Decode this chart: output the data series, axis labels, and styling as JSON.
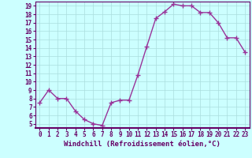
{
  "x": [
    0,
    1,
    2,
    3,
    4,
    5,
    6,
    7,
    8,
    9,
    10,
    11,
    12,
    13,
    14,
    15,
    16,
    17,
    18,
    19,
    20,
    21,
    22,
    23
  ],
  "y": [
    7.5,
    9.0,
    8.0,
    8.0,
    6.5,
    5.5,
    5.0,
    4.8,
    7.5,
    7.8,
    7.8,
    10.8,
    14.2,
    17.5,
    18.3,
    19.2,
    19.0,
    19.0,
    18.2,
    18.2,
    17.0,
    15.2,
    15.2,
    13.5
  ],
  "line_color": "#993399",
  "marker": "+",
  "markersize": 4,
  "bg_color": "#ccffff",
  "grid_color": "#aadddd",
  "xlabel": "Windchill (Refroidissement éolien,°C)",
  "xlim": [
    -0.5,
    23.5
  ],
  "ylim": [
    4.5,
    19.5
  ],
  "yticks": [
    5,
    6,
    7,
    8,
    9,
    10,
    11,
    12,
    13,
    14,
    15,
    16,
    17,
    18,
    19
  ],
  "xticks": [
    0,
    1,
    2,
    3,
    4,
    5,
    6,
    7,
    8,
    9,
    10,
    11,
    12,
    13,
    14,
    15,
    16,
    17,
    18,
    19,
    20,
    21,
    22,
    23
  ],
  "tick_fontsize": 5.5,
  "xlabel_fontsize": 6.5,
  "linewidth": 1.0,
  "spine_color": "#660066",
  "axis_label_color": "#660066",
  "tick_color": "#660066"
}
